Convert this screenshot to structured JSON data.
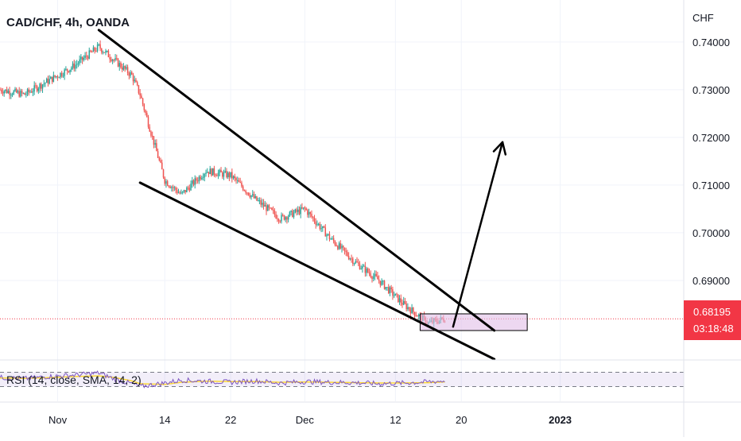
{
  "chart_data": {
    "type": "candlestick",
    "title": "CAD/CHF, 4h, OANDA",
    "symbol": "CAD/CHF",
    "interval": "4h",
    "source": "OANDA",
    "y_axis_unit": "CHF",
    "y_ticks": [
      "0.74000",
      "0.73000",
      "0.72000",
      "0.71000",
      "0.70000",
      "0.69000"
    ],
    "y_tick_values": [
      0.74,
      0.73,
      0.72,
      0.71,
      0.7,
      0.69
    ],
    "ylim": [
      0.6735,
      0.7488
    ],
    "x_ticks": [
      "Nov",
      "14",
      "22",
      "Dec",
      "12",
      "20",
      "2023"
    ],
    "x_tick_dates": [
      "2022-11-01",
      "2022-11-14",
      "2022-11-22",
      "2022-12-01",
      "2022-12-12",
      "2022-12-20",
      "2023-01-01"
    ],
    "xlim": [
      "2022-10-25",
      "2023-01-16"
    ],
    "last_price": "0.68195",
    "last_price_value": 0.68195,
    "countdown": "03:18:48",
    "price_series": {
      "name": "",
      "x": [
        "2022-10-25",
        "2022-10-28",
        "2022-10-31",
        "2022-11-03",
        "2022-11-06",
        "2022-11-08",
        "2022-11-10",
        "2022-11-11",
        "2022-11-14",
        "2022-11-16",
        "2022-11-19",
        "2022-11-22",
        "2022-11-25",
        "2022-11-28",
        "2022-12-01",
        "2022-12-04",
        "2022-12-07",
        "2022-12-10",
        "2022-12-13",
        "2022-12-16",
        "2022-12-18"
      ],
      "y": [
        0.73,
        0.729,
        0.732,
        0.735,
        0.739,
        0.736,
        0.733,
        0.729,
        0.711,
        0.708,
        0.713,
        0.712,
        0.707,
        0.703,
        0.705,
        0.699,
        0.694,
        0.69,
        0.685,
        0.681,
        0.682
      ]
    },
    "rsi": {
      "label": "RSI (14, close, SMA, 14, 2)",
      "upper_band": 70,
      "lower_band": 30,
      "ylim": [
        0,
        100
      ],
      "rsi_values": [
        55,
        52,
        58,
        62,
        68,
        50,
        38,
        30,
        40,
        48,
        45,
        42,
        46,
        40,
        44,
        42,
        41,
        38,
        40,
        43,
        46
      ],
      "ma_values": [
        54,
        53,
        55,
        58,
        60,
        55,
        46,
        38,
        36,
        42,
        45,
        44,
        44,
        42,
        43,
        42,
        41,
        40,
        40,
        41,
        43
      ]
    },
    "annotations": {
      "upper_trendline": [
        [
          "2022-11-06",
          0.7425
        ],
        [
          "2022-12-24",
          0.6795
        ]
      ],
      "lower_trendline": [
        [
          "2022-11-11",
          0.7105
        ],
        [
          "2022-12-24",
          0.6735
        ]
      ],
      "target_arrow": [
        [
          "2022-12-19",
          0.6803
        ],
        [
          "2022-12-25",
          0.719
        ]
      ],
      "demand_zone": {
        "x": [
          "2022-12-15",
          "2022-12-28"
        ],
        "y": [
          0.6795,
          0.683
        ]
      }
    },
    "colors": {
      "up": "#26a69a",
      "down": "#ef5350",
      "rsi_line": "#7e57c2",
      "rsi_ma": "#fdd835",
      "price_tag": "#f23645",
      "zone_fill": "#e1bee7",
      "trendline": "#000000"
    }
  }
}
